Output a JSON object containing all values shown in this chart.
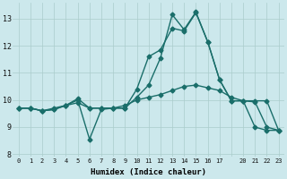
{
  "xlabel": "Humidex (Indice chaleur)",
  "bg_color": "#cce8ec",
  "grid_color": "#aacccc",
  "line_color": "#1a6e6a",
  "ylim": [
    7.9,
    13.6
  ],
  "yticks": [
    8,
    9,
    10,
    11,
    12,
    13
  ],
  "xtick_labels": [
    "0",
    "1",
    "2",
    "3",
    "4",
    "5",
    "6",
    "7",
    "8",
    "9",
    "10",
    "11",
    "12",
    "13",
    "14",
    "15",
    "16",
    "17",
    "",
    "20",
    "21",
    "22",
    "23"
  ],
  "line1_y": [
    9.7,
    9.7,
    9.6,
    9.7,
    9.8,
    9.9,
    9.7,
    9.7,
    9.7,
    9.8,
    10.0,
    10.1,
    10.2,
    10.35,
    10.5,
    10.55,
    10.45,
    10.35,
    10.1,
    9.97,
    9.93,
    9.0,
    8.88
  ],
  "line2_y": [
    9.7,
    9.7,
    9.6,
    9.65,
    9.8,
    10.0,
    8.55,
    9.65,
    9.7,
    9.7,
    10.1,
    10.55,
    11.55,
    13.15,
    12.6,
    13.25,
    12.15,
    10.75,
    9.97,
    9.97,
    9.97,
    9.97,
    8.88
  ],
  "line3_y": [
    9.7,
    9.7,
    9.6,
    9.65,
    9.8,
    10.05,
    9.7,
    9.7,
    9.7,
    9.7,
    10.4,
    11.6,
    11.85,
    12.65,
    12.55,
    13.22,
    12.15,
    10.75,
    9.97,
    9.97,
    9.0,
    8.88,
    8.88
  ],
  "marker": "D",
  "markersize": 2.5,
  "linewidth": 1.0
}
